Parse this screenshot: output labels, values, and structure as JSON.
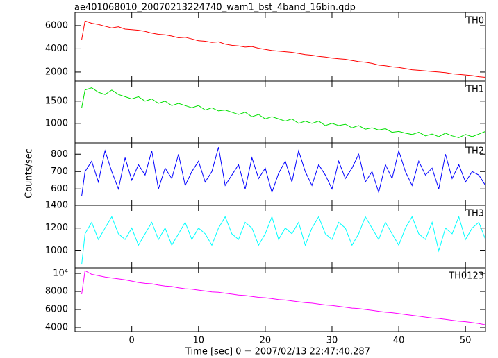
{
  "chart_data": {
    "type": "line",
    "title": "ae401068010_20070213224740_wam1_bst_4band_16bin.qdp",
    "xlabel": "Time [sec] 0 = 2007/02/13 22:47:40.287",
    "ylabel": "Counts/sec",
    "xlim": [
      -8.5,
      53.0
    ],
    "xticks": [
      0,
      10,
      20,
      30,
      40,
      50
    ],
    "x": [
      -7.5,
      -7,
      -6,
      -5,
      -4,
      -3,
      -2,
      -1,
      0,
      1,
      2,
      3,
      4,
      5,
      6,
      7,
      8,
      9,
      10,
      11,
      12,
      13,
      14,
      15,
      16,
      17,
      18,
      19,
      20,
      21,
      22,
      23,
      24,
      25,
      26,
      27,
      28,
      29,
      30,
      31,
      32,
      33,
      34,
      35,
      36,
      37,
      38,
      39,
      40,
      41,
      42,
      43,
      44,
      45,
      46,
      47,
      48,
      49,
      50,
      51,
      52,
      53
    ],
    "series": [
      {
        "name": "TH0",
        "color": "#ff0000",
        "ylim": [
          1220,
          7130
        ],
        "yticks": [
          2000,
          4000,
          6000
        ],
        "values": [
          4800,
          6400,
          6200,
          6100,
          5950,
          5800,
          5900,
          5700,
          5650,
          5600,
          5500,
          5350,
          5250,
          5200,
          5100,
          4950,
          5000,
          4850,
          4700,
          4650,
          4550,
          4600,
          4400,
          4300,
          4250,
          4150,
          4200,
          4050,
          3950,
          3850,
          3800,
          3750,
          3700,
          3600,
          3500,
          3450,
          3350,
          3300,
          3200,
          3150,
          3100,
          3000,
          2900,
          2850,
          2750,
          2600,
          2550,
          2450,
          2400,
          2300,
          2200,
          2150,
          2100,
          2050,
          2000,
          1950,
          1850,
          1800,
          1750,
          1700,
          1600,
          1550
        ]
      },
      {
        "name": "TH1",
        "color": "#00e000",
        "ylim": [
          560,
          1950
        ],
        "yticks": [
          1000,
          1500
        ],
        "values": [
          1350,
          1750,
          1800,
          1700,
          1650,
          1750,
          1650,
          1600,
          1550,
          1600,
          1500,
          1550,
          1450,
          1500,
          1400,
          1450,
          1400,
          1350,
          1400,
          1300,
          1350,
          1280,
          1300,
          1250,
          1200,
          1250,
          1150,
          1200,
          1100,
          1150,
          1100,
          1050,
          1100,
          1000,
          1050,
          1000,
          1050,
          950,
          1000,
          950,
          980,
          900,
          950,
          870,
          900,
          850,
          880,
          800,
          820,
          780,
          750,
          800,
          720,
          760,
          700,
          780,
          720,
          680,
          750,
          700,
          760,
          820
        ]
      },
      {
        "name": "TH2",
        "color": "#0000ff",
        "ylim": [
          505,
          865
        ],
        "yticks": [
          600,
          700,
          800
        ],
        "values": [
          560,
          700,
          760,
          640,
          820,
          700,
          600,
          780,
          650,
          740,
          680,
          820,
          600,
          720,
          660,
          800,
          620,
          700,
          760,
          640,
          700,
          840,
          620,
          680,
          740,
          600,
          780,
          660,
          720,
          580,
          690,
          760,
          640,
          820,
          700,
          620,
          740,
          680,
          600,
          760,
          660,
          720,
          800,
          640,
          700,
          580,
          740,
          660,
          820,
          700,
          620,
          760,
          680,
          720,
          600,
          800,
          660,
          740,
          640,
          700,
          680,
          620
        ]
      },
      {
        "name": "TH3",
        "color": "#00ffff",
        "ylim": [
          850,
          1400
        ],
        "yticks": [
          1000,
          1200,
          1400
        ],
        "values": [
          880,
          1150,
          1250,
          1100,
          1200,
          1300,
          1150,
          1100,
          1200,
          1050,
          1150,
          1250,
          1100,
          1200,
          1050,
          1150,
          1250,
          1100,
          1200,
          1150,
          1050,
          1200,
          1300,
          1150,
          1100,
          1250,
          1200,
          1050,
          1150,
          1300,
          1100,
          1200,
          1150,
          1250,
          1050,
          1200,
          1300,
          1150,
          1100,
          1250,
          1200,
          1050,
          1150,
          1300,
          1200,
          1100,
          1250,
          1150,
          1050,
          1200,
          1300,
          1150,
          1100,
          1250,
          1000,
          1200,
          1150,
          1300,
          1100,
          1200,
          1250,
          1100
        ]
      },
      {
        "name": "TH0123",
        "color": "#ff00ff",
        "ylim": [
          3540,
          10620
        ],
        "yticks": [
          4000,
          6000,
          8000,
          {
            "value": 10000,
            "label": "10⁴"
          }
        ],
        "values": [
          7700,
          10300,
          9900,
          9750,
          9600,
          9500,
          9400,
          9300,
          9150,
          9000,
          8900,
          8850,
          8700,
          8600,
          8550,
          8400,
          8300,
          8250,
          8150,
          8050,
          7950,
          7900,
          7800,
          7700,
          7600,
          7550,
          7450,
          7350,
          7300,
          7200,
          7100,
          7050,
          6950,
          6850,
          6750,
          6700,
          6600,
          6500,
          6450,
          6350,
          6250,
          6150,
          6100,
          6000,
          5900,
          5800,
          5700,
          5650,
          5550,
          5450,
          5350,
          5250,
          5150,
          5050,
          5000,
          4900,
          4800,
          4700,
          4650,
          4550,
          4450,
          4300
        ]
      }
    ]
  }
}
